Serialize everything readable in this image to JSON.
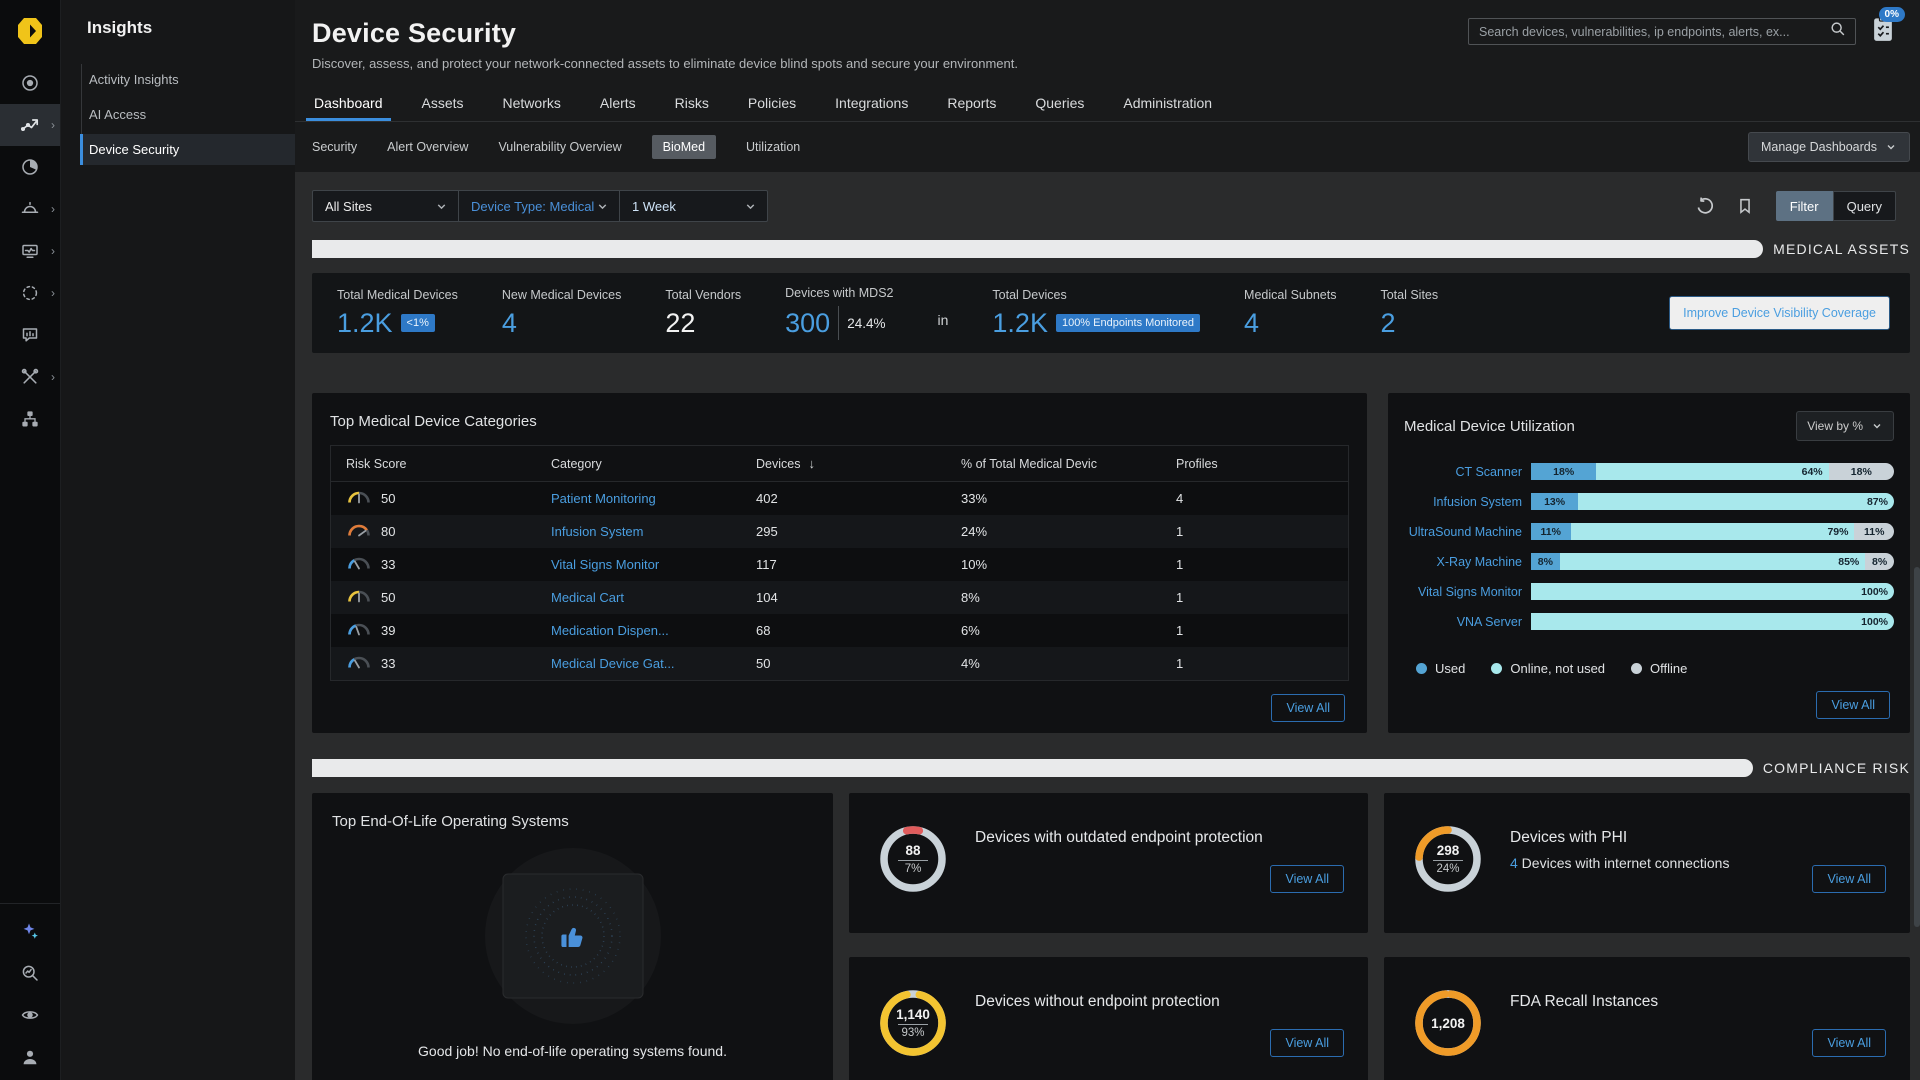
{
  "rail": {
    "top_items": [
      {
        "name": "discover-icon",
        "chevron": false,
        "active": false
      },
      {
        "name": "insights-icon",
        "chevron": true,
        "active": true
      },
      {
        "name": "pie-icon",
        "chevron": false,
        "active": false
      },
      {
        "name": "device-icon",
        "chevron": true,
        "active": false
      },
      {
        "name": "monitor-icon",
        "chevron": true,
        "active": false
      },
      {
        "name": "segments-icon",
        "chevron": true,
        "active": false
      },
      {
        "name": "report-icon",
        "chevron": false,
        "active": false
      },
      {
        "name": "tools-icon",
        "chevron": true,
        "active": false
      },
      {
        "name": "network-icon",
        "chevron": false,
        "active": false
      }
    ],
    "bottom_items": [
      {
        "name": "ai-sparkle-icon",
        "chevron": false,
        "active": false
      },
      {
        "name": "search-trend-icon",
        "chevron": false,
        "active": false
      },
      {
        "name": "eye-icon",
        "chevron": false,
        "active": false
      },
      {
        "name": "user-icon",
        "chevron": false,
        "active": false
      }
    ],
    "logo_color": "#f0c419"
  },
  "sidebar": {
    "title": "Insights",
    "items": [
      {
        "label": "Activity Insights",
        "active": false
      },
      {
        "label": "AI Access",
        "active": false
      },
      {
        "label": "Device Security",
        "active": true
      }
    ]
  },
  "header": {
    "title": "Device Security",
    "description": "Discover, assess, and protect your network-connected assets to eliminate device blind spots and secure your environment.",
    "search_placeholder": "Search devices, vulnerabilities, ip endpoints, alerts, ex...",
    "progress_badge": "0%"
  },
  "tabs": [
    {
      "label": "Dashboard",
      "active": true
    },
    {
      "label": "Assets",
      "active": false
    },
    {
      "label": "Networks",
      "active": false
    },
    {
      "label": "Alerts",
      "active": false
    },
    {
      "label": "Risks",
      "active": false
    },
    {
      "label": "Policies",
      "active": false
    },
    {
      "label": "Integrations",
      "active": false
    },
    {
      "label": "Reports",
      "active": false
    },
    {
      "label": "Queries",
      "active": false
    },
    {
      "label": "Administration",
      "active": false
    }
  ],
  "subtabs": [
    {
      "label": "Security",
      "active": false
    },
    {
      "label": "Alert Overview",
      "active": false
    },
    {
      "label": "Vulnerability Overview",
      "active": false
    },
    {
      "label": "BioMed",
      "active": true
    },
    {
      "label": "Utilization",
      "active": false
    }
  ],
  "manage_dashboards_label": "Manage Dashboards",
  "filters": {
    "site": "All Sites",
    "device_type": "Device Type: Medical",
    "time_range": "1 Week",
    "filter_label": "Filter",
    "query_label": "Query"
  },
  "medical_assets": {
    "section_title": "MEDICAL ASSETS",
    "stats": [
      {
        "label": "Total Medical Devices",
        "value": "1.2K",
        "accent": "blue",
        "badge": "<1%"
      },
      {
        "label": "New Medical Devices",
        "value": "4",
        "accent": "blue"
      },
      {
        "label": "Total Vendors",
        "value": "22",
        "accent": "white"
      },
      {
        "label": "Devices with MDS2",
        "value": "300",
        "accent": "blue",
        "sub": "24.4%"
      },
      {
        "type": "joiner",
        "label": "in"
      },
      {
        "label": "Total Devices",
        "value": "1.2K",
        "accent": "blue",
        "badge": "100% Endpoints Monitored"
      },
      {
        "label": "Medical Subnets",
        "value": "4",
        "accent": "blue"
      },
      {
        "label": "Total Sites",
        "value": "2",
        "accent": "blue"
      }
    ],
    "improve_link": "Improve Device Visibility Coverage"
  },
  "categories_table": {
    "title": "Top Medical Device Categories",
    "columns": [
      "Risk Score",
      "Category",
      "Devices",
      "% of Total Medical Devic",
      "Profiles"
    ],
    "sorted_column": "Devices",
    "rows": [
      {
        "risk_score": 50,
        "risk_color": "#e8c33d",
        "category": "Patient Monitoring",
        "devices": "402",
        "pct": "33%",
        "profiles": "4"
      },
      {
        "risk_score": 80,
        "risk_color": "#e07b39",
        "category": "Infusion System",
        "devices": "295",
        "pct": "24%",
        "profiles": "1"
      },
      {
        "risk_score": 33,
        "risk_color": "#4a9ee0",
        "category": "Vital Signs Monitor",
        "devices": "117",
        "pct": "10%",
        "profiles": "1"
      },
      {
        "risk_score": 50,
        "risk_color": "#e8c33d",
        "category": "Medical Cart",
        "devices": "104",
        "pct": "8%",
        "profiles": "1"
      },
      {
        "risk_score": 39,
        "risk_color": "#4a9ee0",
        "category": "Medication Dispen...",
        "devices": "68",
        "pct": "6%",
        "profiles": "1"
      },
      {
        "risk_score": 33,
        "risk_color": "#4a9ee0",
        "category": "Medical Device Gat...",
        "devices": "50",
        "pct": "4%",
        "profiles": "1"
      }
    ],
    "view_all": "View All"
  },
  "chart_data": [
    {
      "type": "bar",
      "title": "Medical Device Utilization",
      "view_by": "View by %",
      "orientation": "horizontal-stacked",
      "categories": [
        "CT Scanner",
        "Infusion System",
        "UltraSound Machine",
        "X-Ray Machine",
        "Vital Signs Monitor",
        "VNA Server"
      ],
      "series": [
        {
          "name": "Used",
          "color": "#54a4d4",
          "values": [
            18,
            13,
            11,
            8,
            0,
            0
          ]
        },
        {
          "name": "Online, not used",
          "color": "#a8e8ec",
          "values": [
            64,
            87,
            79,
            85,
            100,
            100
          ]
        },
        {
          "name": "Offline",
          "color": "#c9d2d8",
          "values": [
            18,
            0,
            11,
            8,
            0,
            0
          ]
        }
      ],
      "xlim": [
        0,
        100
      ],
      "legend_position": "bottom",
      "view_all": "View All"
    },
    {
      "type": "pie",
      "title": "Compliance risk donuts",
      "items": [
        {
          "label": "Devices with outdated endpoint protection",
          "count": 88,
          "pct": 7
        },
        {
          "label": "Devices with PHI",
          "count": 298,
          "pct": 24
        },
        {
          "label": "Devices without endpoint protection",
          "count": 1140,
          "pct": 93
        },
        {
          "label": "FDA Recall Instances",
          "count": 1208,
          "pct": 97
        }
      ]
    }
  ],
  "compliance": {
    "section_title": "COMPLIANCE RISK",
    "eol_card": {
      "title": "Top End-Of-Life Operating Systems",
      "message": "Good job! No end-of-life operating systems found."
    },
    "cards": [
      {
        "value": "88",
        "pct_label": "7%",
        "pct": 7,
        "color": "#e05c5c",
        "track": "#c9d2d8",
        "mode": "value-top-center",
        "title": "Devices with outdated endpoint protection",
        "view_all": "View All"
      },
      {
        "value": "298",
        "pct_label": "24%",
        "pct": 24,
        "color": "#ef9b28",
        "track": "#c9d2d8",
        "mode": "end-top",
        "title": "Devices with PHI",
        "sub_count": "4",
        "subtitle": "Devices with internet connections",
        "view_all": "View All"
      },
      {
        "value": "1,140",
        "pct_label": "93%",
        "pct": 93,
        "color": "#f3c431",
        "track": "#c9d2d8",
        "mode": "gap-top-center",
        "title": "Devices without endpoint protection",
        "view_all": "View All"
      },
      {
        "value": "1,208",
        "pct_label": "",
        "pct": 97,
        "color": "#ef9b28",
        "track": "#e8eaec",
        "mode": "gap-top-center",
        "title": "FDA Recall Instances",
        "view_all": "View All"
      }
    ]
  }
}
